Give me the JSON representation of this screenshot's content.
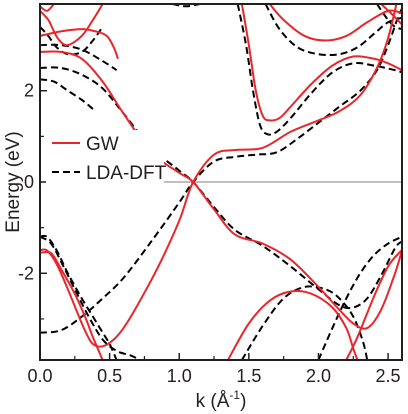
{
  "chart_data": {
    "type": "line",
    "xlabel": "k (Å",
    "xlabel_sup": "-1",
    "xlabel_close": ")",
    "ylabel": "Energy (eV)",
    "xlim": [
      0.0,
      2.6
    ],
    "ylim": [
      -3.9,
      3.9
    ],
    "xticks": [
      0.0,
      0.5,
      1.0,
      1.5,
      2.0,
      2.5
    ],
    "xtick_labels": [
      "0.0",
      "0.5",
      "1.0",
      "1.5",
      "2.0",
      "2.5"
    ],
    "yticks": [
      -2,
      0,
      2
    ],
    "ytick_labels": [
      "-2",
      "0",
      "2"
    ],
    "zero_line": true,
    "grid": false,
    "legend_position": "center-left",
    "legend": [
      {
        "label": "GW",
        "style": "solid",
        "color": "#e8262b"
      },
      {
        "label": "LDA-DFT",
        "style": "dashed",
        "color": "#000000"
      }
    ],
    "series": [
      {
        "group": "GW",
        "lines": [
          [
            [
              0.0,
              -1.55
            ],
            [
              0.08,
              -1.56
            ],
            [
              0.15,
              -1.9
            ],
            [
              0.25,
              -2.45
            ],
            [
              0.33,
              -3.0
            ],
            [
              0.38,
              -3.4
            ],
            [
              0.45,
              -3.9
            ]
          ],
          [
            [
              0.0,
              -1.5
            ],
            [
              0.05,
              -1.5
            ],
            [
              0.12,
              -1.8
            ],
            [
              0.2,
              -2.35
            ],
            [
              0.28,
              -2.95
            ],
            [
              0.33,
              -3.3
            ],
            [
              0.38,
              -3.55
            ],
            [
              0.45,
              -3.6
            ],
            [
              0.53,
              -3.45
            ],
            [
              0.6,
              -3.2
            ],
            [
              0.7,
              -2.7
            ],
            [
              0.85,
              -1.85
            ],
            [
              1.0,
              -0.85
            ],
            [
              1.1,
              0.0
            ],
            [
              1.25,
              0.6
            ],
            [
              1.4,
              0.7
            ],
            [
              1.6,
              0.75
            ],
            [
              1.8,
              1.1
            ],
            [
              2.0,
              1.35
            ],
            [
              2.15,
              1.55
            ],
            [
              2.3,
              1.9
            ],
            [
              2.42,
              2.5
            ],
            [
              2.5,
              3.15
            ],
            [
              2.56,
              3.9
            ]
          ],
          [
            [
              0.0,
              2.85
            ],
            [
              0.15,
              2.85
            ],
            [
              0.3,
              2.7
            ],
            [
              0.45,
              2.2
            ],
            [
              0.6,
              1.5
            ],
            [
              0.8,
              0.65
            ],
            [
              1.0,
              0.2
            ],
            [
              1.1,
              0.0
            ],
            [
              1.25,
              -0.6
            ],
            [
              1.4,
              -1.15
            ],
            [
              1.6,
              -1.35
            ],
            [
              1.8,
              -1.7
            ],
            [
              2.0,
              -2.3
            ],
            [
              2.15,
              -2.8
            ],
            [
              2.25,
              -3.1
            ],
            [
              2.35,
              -3.2
            ],
            [
              2.45,
              -2.8
            ],
            [
              2.55,
              -2.0
            ],
            [
              2.6,
              -1.5
            ]
          ],
          [
            [
              0.0,
              3.2
            ],
            [
              0.15,
              3.3
            ],
            [
              0.3,
              3.35
            ],
            [
              0.4,
              3.3
            ],
            [
              0.48,
              3.2
            ],
            [
              0.53,
              2.95
            ],
            [
              0.56,
              2.7
            ]
          ],
          [
            [
              0.0,
              3.75
            ],
            [
              0.06,
              3.55
            ],
            [
              0.1,
              3.3
            ],
            [
              0.14,
              3.1
            ],
            [
              0.2,
              3.0
            ],
            [
              0.3,
              3.2
            ],
            [
              0.38,
              3.55
            ],
            [
              0.45,
              3.9
            ]
          ],
          [
            [
              0.0,
              3.85
            ],
            [
              0.05,
              3.75
            ],
            [
              0.1,
              3.9
            ]
          ],
          [
            [
              1.45,
              3.9
            ],
            [
              1.5,
              3.0
            ],
            [
              1.55,
              2.0
            ],
            [
              1.6,
              1.45
            ],
            [
              1.65,
              1.35
            ],
            [
              1.72,
              1.4
            ],
            [
              1.8,
              1.65
            ],
            [
              1.95,
              2.15
            ],
            [
              2.1,
              2.55
            ],
            [
              2.25,
              2.75
            ],
            [
              2.4,
              2.7
            ],
            [
              2.5,
              2.6
            ],
            [
              2.6,
              2.45
            ]
          ],
          [
            [
              1.65,
              3.9
            ],
            [
              1.75,
              3.55
            ],
            [
              1.9,
              3.2
            ],
            [
              2.05,
              3.1
            ],
            [
              2.2,
              3.2
            ],
            [
              2.35,
              3.5
            ],
            [
              2.5,
              3.75
            ],
            [
              2.6,
              3.7
            ]
          ],
          [
            [
              2.45,
              3.9
            ],
            [
              2.52,
              3.7
            ],
            [
              2.6,
              3.45
            ]
          ],
          [
            [
              1.35,
              -3.9
            ],
            [
              1.5,
              -3.1
            ],
            [
              1.65,
              -2.6
            ],
            [
              1.8,
              -2.4
            ],
            [
              1.95,
              -2.45
            ],
            [
              2.1,
              -2.75
            ],
            [
              2.2,
              -3.2
            ],
            [
              2.25,
              -3.65
            ],
            [
              2.28,
              -3.9
            ]
          ],
          [
            [
              2.2,
              -3.9
            ],
            [
              2.28,
              -3.4
            ],
            [
              2.4,
              -2.5
            ],
            [
              2.5,
              -1.85
            ],
            [
              2.58,
              -1.55
            ],
            [
              2.6,
              -1.5
            ]
          ]
        ]
      },
      {
        "group": "LDA-DFT",
        "lines": [
          [
            [
              0.0,
              -1.2
            ],
            [
              0.05,
              -1.2
            ],
            [
              0.12,
              -1.5
            ],
            [
              0.2,
              -2.0
            ],
            [
              0.3,
              -2.55
            ],
            [
              0.38,
              -2.95
            ],
            [
              0.45,
              -3.3
            ],
            [
              0.5,
              -3.55
            ],
            [
              0.55,
              -3.9
            ]
          ],
          [
            [
              0.0,
              -3.3
            ],
            [
              0.15,
              -3.25
            ],
            [
              0.3,
              -2.95
            ],
            [
              0.45,
              -2.55
            ],
            [
              0.6,
              -2.1
            ],
            [
              0.8,
              -1.3
            ],
            [
              1.0,
              -0.45
            ],
            [
              1.1,
              0.0
            ],
            [
              1.25,
              0.45
            ],
            [
              1.4,
              0.55
            ],
            [
              1.55,
              0.6
            ],
            [
              1.7,
              0.65
            ],
            [
              1.85,
              0.95
            ],
            [
              2.0,
              1.3
            ],
            [
              2.15,
              1.65
            ],
            [
              2.3,
              2.0
            ],
            [
              2.42,
              2.45
            ],
            [
              2.5,
              3.0
            ],
            [
              2.57,
              3.6
            ],
            [
              2.6,
              3.8
            ]
          ],
          [
            [
              0.0,
              -1.2
            ],
            [
              0.08,
              -1.35
            ],
            [
              0.16,
              -1.8
            ],
            [
              0.25,
              -2.35
            ],
            [
              0.35,
              -2.95
            ],
            [
              0.45,
              -3.45
            ],
            [
              0.55,
              -3.7
            ],
            [
              0.65,
              -3.8
            ],
            [
              0.72,
              -3.9
            ]
          ],
          [
            [
              0.0,
              2.5
            ],
            [
              0.15,
              2.5
            ],
            [
              0.3,
              2.35
            ],
            [
              0.45,
              2.05
            ],
            [
              0.6,
              1.5
            ],
            [
              0.8,
              0.75
            ],
            [
              1.0,
              0.25
            ],
            [
              1.1,
              0.0
            ],
            [
              1.25,
              -0.55
            ],
            [
              1.4,
              -1.05
            ],
            [
              1.6,
              -1.4
            ],
            [
              1.8,
              -1.85
            ],
            [
              2.0,
              -2.35
            ],
            [
              2.15,
              -2.7
            ],
            [
              2.25,
              -2.75
            ],
            [
              2.35,
              -2.55
            ],
            [
              2.45,
              -2.05
            ],
            [
              2.55,
              -1.45
            ],
            [
              2.6,
              -1.3
            ]
          ],
          [
            [
              0.0,
              2.25
            ],
            [
              0.1,
              2.2
            ],
            [
              0.2,
              2.0
            ],
            [
              0.3,
              1.8
            ],
            [
              0.38,
              1.6
            ]
          ],
          [
            [
              0.0,
              3.0
            ],
            [
              0.15,
              3.0
            ],
            [
              0.3,
              2.9
            ],
            [
              0.45,
              2.65
            ],
            [
              0.55,
              2.45
            ]
          ],
          [
            [
              0.0,
              3.4
            ],
            [
              0.06,
              3.2
            ],
            [
              0.12,
              2.95
            ],
            [
              0.2,
              2.8
            ],
            [
              0.3,
              2.85
            ],
            [
              0.38,
              3.1
            ],
            [
              0.45,
              3.4
            ]
          ],
          [
            [
              0.95,
              3.9
            ],
            [
              1.05,
              3.85
            ],
            [
              1.15,
              3.9
            ]
          ],
          [
            [
              1.42,
              3.9
            ],
            [
              1.48,
              3.0
            ],
            [
              1.53,
              2.0
            ],
            [
              1.58,
              1.25
            ],
            [
              1.63,
              1.05
            ],
            [
              1.7,
              1.1
            ],
            [
              1.8,
              1.4
            ],
            [
              1.95,
              1.95
            ],
            [
              2.1,
              2.4
            ],
            [
              2.25,
              2.6
            ],
            [
              2.4,
              2.55
            ],
            [
              2.55,
              2.45
            ],
            [
              2.6,
              2.4
            ]
          ],
          [
            [
              1.62,
              3.9
            ],
            [
              1.72,
              3.35
            ],
            [
              1.85,
              2.95
            ],
            [
              2.0,
              2.8
            ],
            [
              2.15,
              2.8
            ],
            [
              2.28,
              2.95
            ],
            [
              2.4,
              3.25
            ],
            [
              2.5,
              3.5
            ],
            [
              2.6,
              3.6
            ]
          ],
          [
            [
              2.42,
              3.9
            ],
            [
              2.5,
              3.55
            ],
            [
              2.55,
              3.4
            ],
            [
              2.6,
              3.35
            ]
          ],
          [
            [
              1.45,
              -3.9
            ],
            [
              1.6,
              -3.15
            ],
            [
              1.75,
              -2.55
            ],
            [
              1.9,
              -2.3
            ],
            [
              2.05,
              -2.35
            ],
            [
              2.15,
              -2.55
            ],
            [
              2.25,
              -2.95
            ],
            [
              2.32,
              -3.5
            ],
            [
              2.35,
              -3.9
            ]
          ],
          [
            [
              2.0,
              -3.9
            ],
            [
              2.1,
              -3.2
            ],
            [
              2.2,
              -2.55
            ],
            [
              2.3,
              -2.0
            ],
            [
              2.4,
              -1.6
            ],
            [
              2.5,
              -1.35
            ],
            [
              2.6,
              -1.2
            ]
          ]
        ]
      }
    ]
  }
}
